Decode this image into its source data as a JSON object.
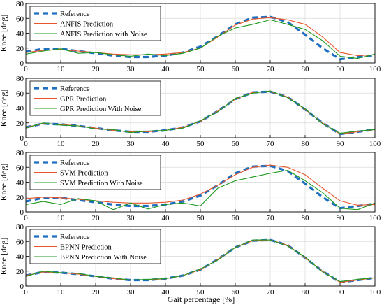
{
  "figure": {
    "xlabel": "Gait percentage [%]"
  },
  "colors": {
    "reference": "#1f6fc1",
    "prediction": "#e8552a",
    "noise": "#1f9a1f",
    "grid": "#d9d9d9",
    "axes": "#000000"
  },
  "chart_data": [
    {
      "type": "line",
      "ylabel": "Knee [deg]",
      "xlim": [
        0,
        100
      ],
      "ylim": [
        0,
        80
      ],
      "xticks": [
        0,
        10,
        20,
        30,
        40,
        50,
        60,
        70,
        80,
        90,
        100
      ],
      "yticks": [
        0,
        20,
        40,
        60,
        80
      ],
      "grid": true,
      "legend_position": "top-left",
      "x": [
        0,
        5,
        10,
        15,
        20,
        25,
        30,
        35,
        40,
        45,
        50,
        55,
        60,
        65,
        70,
        75,
        80,
        85,
        90,
        95,
        100
      ],
      "series": [
        {
          "name": "Reference",
          "style": "dashed",
          "role": "reference",
          "values": [
            15,
            19,
            19,
            16,
            13,
            10,
            8,
            8,
            10,
            14,
            22,
            36,
            52,
            61,
            62,
            55,
            38,
            20,
            5,
            8,
            10
          ]
        },
        {
          "name": "ANFIS Prediction",
          "style": "solid",
          "role": "prediction",
          "values": [
            14,
            17,
            18,
            16,
            14,
            12,
            11,
            11,
            12,
            14,
            20,
            35,
            51,
            59,
            61,
            58,
            52,
            35,
            14,
            10,
            11
          ]
        },
        {
          "name": "ANFIS Prediction with Noise",
          "style": "solid",
          "role": "noise",
          "values": [
            12,
            16,
            19,
            13,
            14,
            11,
            9,
            12,
            10,
            13,
            20,
            36,
            47,
            52,
            58,
            52,
            45,
            30,
            9,
            6,
            12
          ]
        }
      ]
    },
    {
      "type": "line",
      "ylabel": "Knee [deg]",
      "xlim": [
        0,
        100
      ],
      "ylim": [
        0,
        80
      ],
      "xticks": [
        0,
        10,
        20,
        30,
        40,
        50,
        60,
        70,
        80,
        90,
        100
      ],
      "yticks": [
        0,
        20,
        40,
        60,
        80
      ],
      "grid": true,
      "legend_position": "top-left",
      "x": [
        0,
        5,
        10,
        15,
        20,
        25,
        30,
        35,
        40,
        45,
        50,
        55,
        60,
        65,
        70,
        75,
        80,
        85,
        90,
        95,
        100
      ],
      "series": [
        {
          "name": "Reference",
          "style": "dashed",
          "role": "reference",
          "values": [
            14,
            19,
            18,
            16,
            13,
            10,
            8,
            8,
            10,
            14,
            22,
            36,
            52,
            61,
            62,
            55,
            38,
            20,
            5,
            8,
            11
          ]
        },
        {
          "name": "GPR Prediction",
          "style": "solid",
          "role": "prediction",
          "values": [
            14,
            19,
            18,
            16,
            13,
            10,
            8,
            8,
            10,
            14,
            22,
            36,
            52,
            61,
            62,
            55,
            38,
            20,
            5,
            8,
            11
          ]
        },
        {
          "name": "GPR Prediction With Noise",
          "style": "solid",
          "role": "noise",
          "values": [
            13,
            20,
            17,
            16,
            12,
            11,
            7,
            9,
            10,
            13,
            23,
            35,
            53,
            60,
            63,
            54,
            39,
            19,
            6,
            9,
            11
          ]
        }
      ]
    },
    {
      "type": "line",
      "ylabel": "Knee [deg]",
      "xlim": [
        0,
        100
      ],
      "ylim": [
        0,
        80
      ],
      "xticks": [
        0,
        10,
        20,
        30,
        40,
        50,
        60,
        70,
        80,
        90,
        100
      ],
      "yticks": [
        0,
        20,
        40,
        60,
        80
      ],
      "grid": true,
      "legend_position": "top-left",
      "x": [
        0,
        5,
        10,
        15,
        20,
        25,
        30,
        35,
        40,
        45,
        50,
        55,
        60,
        65,
        70,
        75,
        80,
        85,
        90,
        95,
        100
      ],
      "series": [
        {
          "name": "Reference",
          "style": "dashed",
          "role": "reference",
          "values": [
            14,
            19,
            19,
            16,
            13,
            10,
            8,
            8,
            10,
            14,
            22,
            36,
            52,
            61,
            62,
            55,
            38,
            20,
            5,
            8,
            11
          ]
        },
        {
          "name": "SVM Prediction",
          "style": "solid",
          "role": "prediction",
          "values": [
            18,
            20,
            19,
            17,
            15,
            13,
            12,
            12,
            13,
            16,
            24,
            36,
            50,
            60,
            63,
            60,
            50,
            32,
            15,
            9,
            10
          ]
        },
        {
          "name": "SVM Prediction With Noise",
          "style": "solid",
          "role": "noise",
          "values": [
            10,
            14,
            10,
            18,
            15,
            3,
            12,
            4,
            10,
            12,
            8,
            32,
            42,
            47,
            52,
            56,
            42,
            26,
            5,
            3,
            12
          ]
        }
      ]
    },
    {
      "type": "line",
      "ylabel": "Knee [deg]",
      "xlim": [
        0,
        100
      ],
      "ylim": [
        0,
        80
      ],
      "xticks": [
        0,
        10,
        20,
        30,
        40,
        50,
        60,
        70,
        80,
        90,
        100
      ],
      "yticks": [
        0,
        20,
        40,
        60,
        80
      ],
      "grid": true,
      "legend_position": "top-left",
      "x": [
        0,
        5,
        10,
        15,
        20,
        25,
        30,
        35,
        40,
        45,
        50,
        55,
        60,
        65,
        70,
        75,
        80,
        85,
        90,
        95,
        100
      ],
      "series": [
        {
          "name": "Reference",
          "style": "dashed",
          "role": "reference",
          "values": [
            14,
            19,
            18,
            16,
            13,
            10,
            8,
            8,
            10,
            14,
            22,
            36,
            52,
            61,
            62,
            55,
            38,
            20,
            5,
            8,
            11
          ]
        },
        {
          "name": "BPNN Prediction",
          "style": "solid",
          "role": "prediction",
          "values": [
            14,
            19,
            18,
            16,
            13,
            10,
            8,
            8,
            10,
            14,
            22,
            36,
            52,
            61,
            62,
            55,
            38,
            20,
            5,
            8,
            11
          ]
        },
        {
          "name": "BPNN Prediction With Noise",
          "style": "solid",
          "role": "noise",
          "values": [
            13,
            20,
            18,
            17,
            13,
            11,
            8,
            9,
            10,
            14,
            23,
            35,
            52,
            62,
            62,
            54,
            39,
            19,
            6,
            9,
            11
          ]
        }
      ]
    }
  ]
}
